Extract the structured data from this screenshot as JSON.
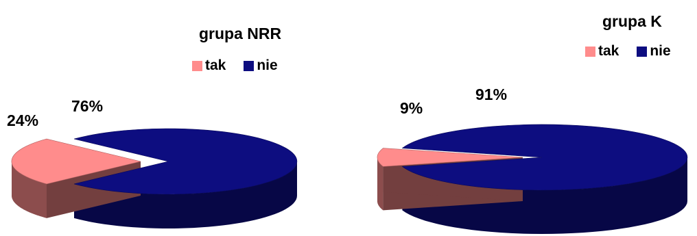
{
  "chart_data": [
    {
      "type": "pie",
      "title": "grupa NRR",
      "legend": "top",
      "categories": [
        "tak",
        "nie"
      ],
      "values": [
        24,
        76
      ],
      "labels": [
        "24%",
        "76%"
      ],
      "colors": [
        "#ff8c8c",
        "#0d0d80"
      ],
      "exploded": "tak"
    },
    {
      "type": "pie",
      "title": "grupa K",
      "legend": "top-right",
      "categories": [
        "tak",
        "nie"
      ],
      "values": [
        9,
        91
      ],
      "labels": [
        "9%",
        "91%"
      ],
      "colors": [
        "#ff8c8c",
        "#0d0d80"
      ],
      "exploded": "tak"
    }
  ]
}
